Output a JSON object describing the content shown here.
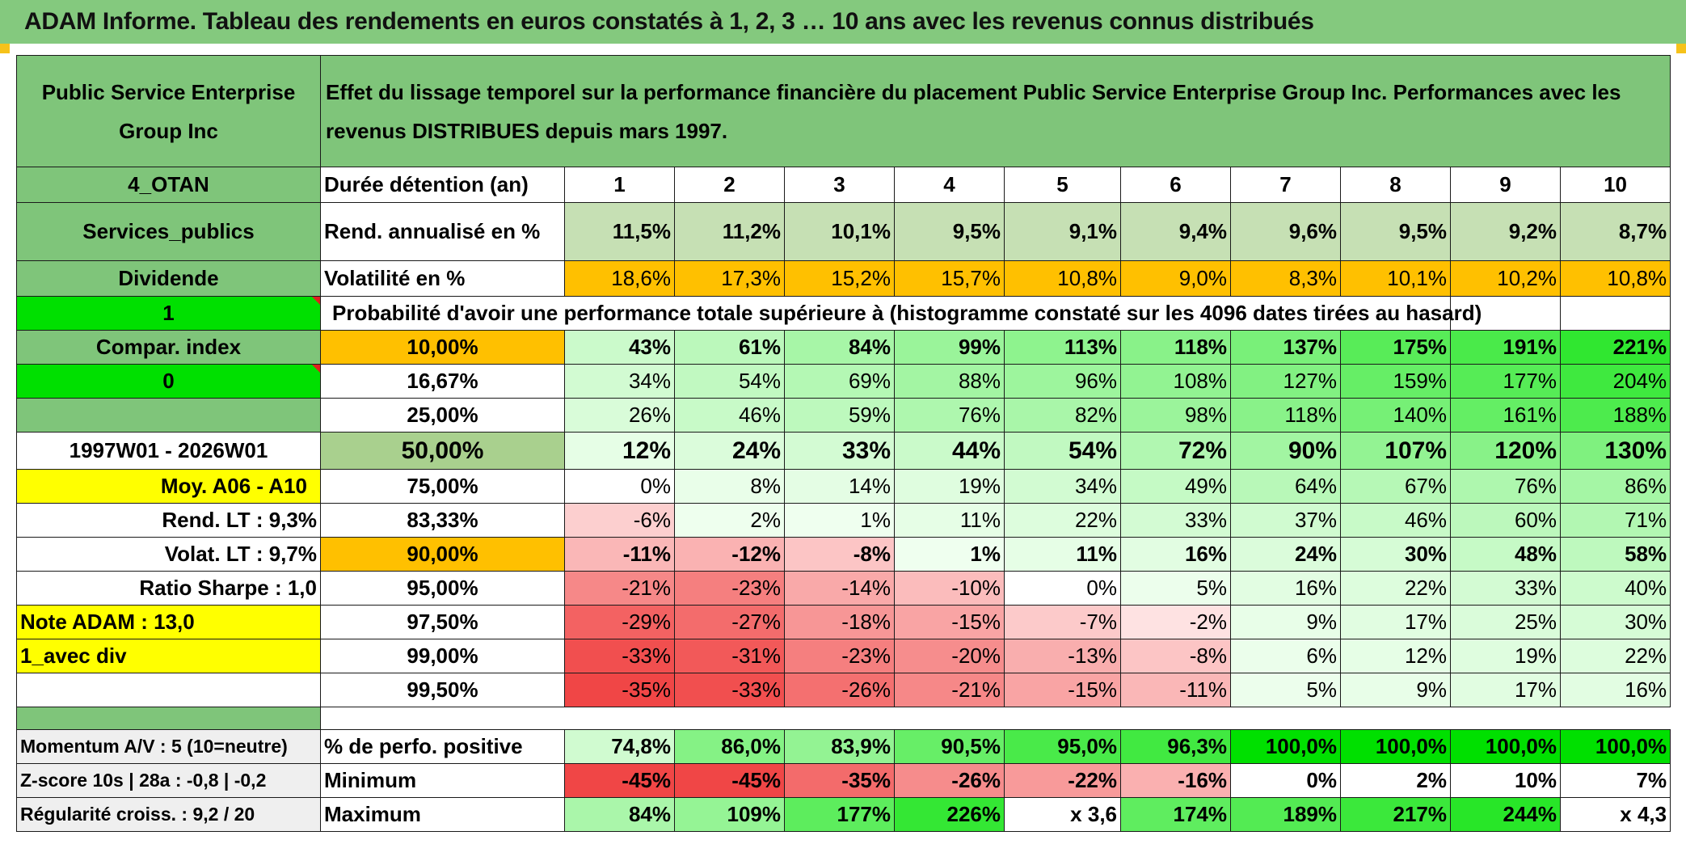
{
  "title": "ADAM Informe. Tableau des rendements en euros constatés à 1, 2, 3 … 10 ans avec les revenus connus distribués",
  "company": "Public Service Enterprise Group Inc",
  "subtitle": "Effet du lissage temporel sur la performance financière du placement Public Service Enterprise Group Inc. Performances avec les revenus DISTRIBUES depuis mars 1997.",
  "left_labels": {
    "code": "4_OTAN",
    "sector": "Services_publics",
    "dividend": "Dividende",
    "one": "1",
    "compar": "Compar. index",
    "zero": "0",
    "period": "1997W01 - 2026W01",
    "moy": "Moy. A06 - A10",
    "rend_lt": "Rend. LT :   9,3%",
    "volat_lt": "Volat. LT :   9,7%",
    "sharpe": "Ratio Sharpe :   1,0",
    "note": "Note ADAM : 13,0",
    "avec_div": "1_avec div",
    "momentum": "Momentum A/V : 5 (10=neutre)",
    "zscore": "Z-score 10s | 28a : -0,8 | -0,2",
    "regularite": "Régularité croiss. : 9,2 / 20"
  },
  "durations_label": "Durée détention (an)",
  "durations": [
    "1",
    "2",
    "3",
    "4",
    "5",
    "6",
    "7",
    "8",
    "9",
    "10"
  ],
  "rend_label": "Rend. annualisé en %",
  "rend": [
    "11,5%",
    "11,2%",
    "10,1%",
    "9,5%",
    "9,1%",
    "9,4%",
    "9,6%",
    "9,5%",
    "9,2%",
    "8,7%"
  ],
  "vol_label": "Volatilité en %",
  "vol": [
    "18,6%",
    "17,3%",
    "15,2%",
    "15,7%",
    "10,8%",
    "9,0%",
    "8,3%",
    "10,1%",
    "10,2%",
    "10,8%"
  ],
  "proba_label": "Probabilité d'avoir une performance totale supérieure à (histogramme constaté sur les 4096 dates tirées au hasard)",
  "quantile_rows": [
    {
      "p": "10,00%",
      "v": [
        "43%",
        "61%",
        "84%",
        "99%",
        "113%",
        "118%",
        "137%",
        "175%",
        "191%",
        "221%"
      ]
    },
    {
      "p": "16,67%",
      "v": [
        "34%",
        "54%",
        "69%",
        "88%",
        "96%",
        "108%",
        "127%",
        "159%",
        "177%",
        "204%"
      ]
    },
    {
      "p": "25,00%",
      "v": [
        "26%",
        "46%",
        "59%",
        "76%",
        "82%",
        "98%",
        "118%",
        "140%",
        "161%",
        "188%"
      ]
    },
    {
      "p": "50,00%",
      "v": [
        "12%",
        "24%",
        "33%",
        "44%",
        "54%",
        "72%",
        "90%",
        "107%",
        "120%",
        "130%"
      ]
    },
    {
      "p": "75,00%",
      "v": [
        "0%",
        "8%",
        "14%",
        "19%",
        "34%",
        "49%",
        "64%",
        "67%",
        "76%",
        "86%"
      ]
    },
    {
      "p": "83,33%",
      "v": [
        "-6%",
        "2%",
        "1%",
        "11%",
        "22%",
        "33%",
        "37%",
        "46%",
        "60%",
        "71%"
      ]
    },
    {
      "p": "90,00%",
      "v": [
        "-11%",
        "-12%",
        "-8%",
        "1%",
        "11%",
        "16%",
        "24%",
        "30%",
        "48%",
        "58%"
      ]
    },
    {
      "p": "95,00%",
      "v": [
        "-21%",
        "-23%",
        "-14%",
        "-10%",
        "0%",
        "5%",
        "16%",
        "22%",
        "33%",
        "40%"
      ]
    },
    {
      "p": "97,50%",
      "v": [
        "-29%",
        "-27%",
        "-18%",
        "-15%",
        "-7%",
        "-2%",
        "9%",
        "17%",
        "25%",
        "30%"
      ]
    },
    {
      "p": "99,00%",
      "v": [
        "-33%",
        "-31%",
        "-23%",
        "-20%",
        "-13%",
        "-8%",
        "6%",
        "12%",
        "19%",
        "22%"
      ]
    },
    {
      "p": "99,50%",
      "v": [
        "-35%",
        "-33%",
        "-26%",
        "-21%",
        "-15%",
        "-11%",
        "5%",
        "9%",
        "17%",
        "16%"
      ]
    }
  ],
  "pos_label": "% de perfo. positive",
  "pos": [
    "74,8%",
    "86,0%",
    "83,9%",
    "90,5%",
    "95,0%",
    "96,3%",
    "100,0%",
    "100,0%",
    "100,0%",
    "100,0%"
  ],
  "min_label": "Minimum",
  "min": [
    "-45%",
    "-45%",
    "-35%",
    "-26%",
    "-22%",
    "-16%",
    "0%",
    "2%",
    "10%",
    "7%"
  ],
  "max_label": "Maximum",
  "max": [
    "84%",
    "109%",
    "177%",
    "226%",
    "x 3,6",
    "174%",
    "189%",
    "217%",
    "244%",
    "x 4,3"
  ],
  "colors": {
    "title_green": "#84c97e",
    "label_green": "#7fc57a",
    "bright_green": "#00e000",
    "yellow": "#ffff00",
    "orange": "#ffc000",
    "red_text": "#d41e1e"
  }
}
